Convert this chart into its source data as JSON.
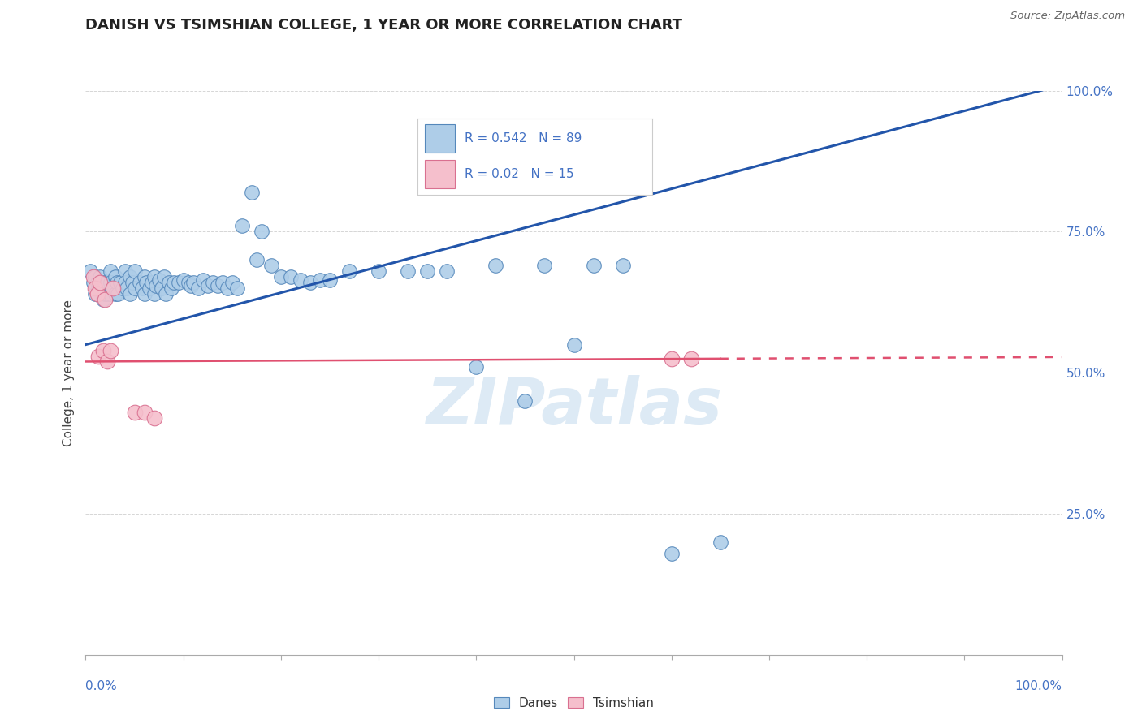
{
  "title": "DANISH VS TSIMSHIAN COLLEGE, 1 YEAR OR MORE CORRELATION CHART",
  "source": "Source: ZipAtlas.com",
  "ylabel": "College, 1 year or more",
  "ytick_positions": [
    0.0,
    0.25,
    0.5,
    0.75,
    1.0
  ],
  "ytick_labels": [
    "",
    "25.0%",
    "50.0%",
    "75.0%",
    "100.0%"
  ],
  "xlim": [
    0.0,
    1.0
  ],
  "ylim": [
    0.0,
    1.0
  ],
  "danes_R": 0.542,
  "danes_N": 89,
  "tsimshian_R": 0.02,
  "tsimshian_N": 15,
  "danes_face_color": "#aecde8",
  "danes_edge_color": "#5588bb",
  "tsimshian_face_color": "#f5bfcc",
  "tsimshian_edge_color": "#d97090",
  "danes_line_color": "#2255aa",
  "tsimshian_line_color": "#e05070",
  "danes_trend": [
    0.0,
    1.0,
    0.55,
    1.01
  ],
  "tsimshian_trend": [
    0.0,
    1.0,
    0.52,
    0.528
  ],
  "danes_x": [
    0.005,
    0.008,
    0.01,
    0.01,
    0.012,
    0.013,
    0.015,
    0.015,
    0.016,
    0.018,
    0.018,
    0.02,
    0.02,
    0.022,
    0.022,
    0.025,
    0.025,
    0.025,
    0.028,
    0.03,
    0.03,
    0.032,
    0.033,
    0.035,
    0.038,
    0.04,
    0.04,
    0.042,
    0.045,
    0.045,
    0.048,
    0.05,
    0.05,
    0.055,
    0.058,
    0.06,
    0.06,
    0.062,
    0.065,
    0.068,
    0.07,
    0.07,
    0.072,
    0.075,
    0.078,
    0.08,
    0.082,
    0.085,
    0.088,
    0.09,
    0.095,
    0.1,
    0.105,
    0.108,
    0.11,
    0.115,
    0.12,
    0.125,
    0.13,
    0.135,
    0.14,
    0.145,
    0.15,
    0.155,
    0.16,
    0.17,
    0.175,
    0.18,
    0.19,
    0.2,
    0.21,
    0.22,
    0.23,
    0.24,
    0.25,
    0.27,
    0.3,
    0.33,
    0.35,
    0.37,
    0.4,
    0.42,
    0.45,
    0.47,
    0.5,
    0.52,
    0.55,
    0.6,
    0.65
  ],
  "danes_y": [
    0.68,
    0.66,
    0.67,
    0.64,
    0.66,
    0.65,
    0.67,
    0.65,
    0.66,
    0.65,
    0.63,
    0.66,
    0.64,
    0.66,
    0.64,
    0.68,
    0.66,
    0.64,
    0.65,
    0.67,
    0.64,
    0.66,
    0.64,
    0.66,
    0.65,
    0.68,
    0.66,
    0.65,
    0.67,
    0.64,
    0.66,
    0.68,
    0.65,
    0.66,
    0.65,
    0.67,
    0.64,
    0.66,
    0.65,
    0.66,
    0.67,
    0.64,
    0.655,
    0.665,
    0.65,
    0.67,
    0.64,
    0.66,
    0.65,
    0.66,
    0.66,
    0.665,
    0.66,
    0.655,
    0.66,
    0.65,
    0.665,
    0.655,
    0.66,
    0.655,
    0.66,
    0.65,
    0.66,
    0.65,
    0.76,
    0.82,
    0.7,
    0.75,
    0.69,
    0.67,
    0.67,
    0.665,
    0.66,
    0.665,
    0.665,
    0.68,
    0.68,
    0.68,
    0.68,
    0.68,
    0.51,
    0.69,
    0.45,
    0.69,
    0.55,
    0.69,
    0.69,
    0.18,
    0.2
  ],
  "tsimshian_x": [
    0.008,
    0.01,
    0.012,
    0.013,
    0.015,
    0.018,
    0.02,
    0.022,
    0.025,
    0.028,
    0.05,
    0.06,
    0.07,
    0.6,
    0.62
  ],
  "tsimshian_y": [
    0.67,
    0.65,
    0.64,
    0.53,
    0.66,
    0.54,
    0.63,
    0.52,
    0.54,
    0.65,
    0.43,
    0.43,
    0.42,
    0.525,
    0.525
  ],
  "background_color": "#ffffff",
  "grid_color": "#cccccc",
  "watermark_color": "#ddeaf5",
  "title_fontsize": 13,
  "axis_color": "#4472c4",
  "legend_color": "#4472c4"
}
